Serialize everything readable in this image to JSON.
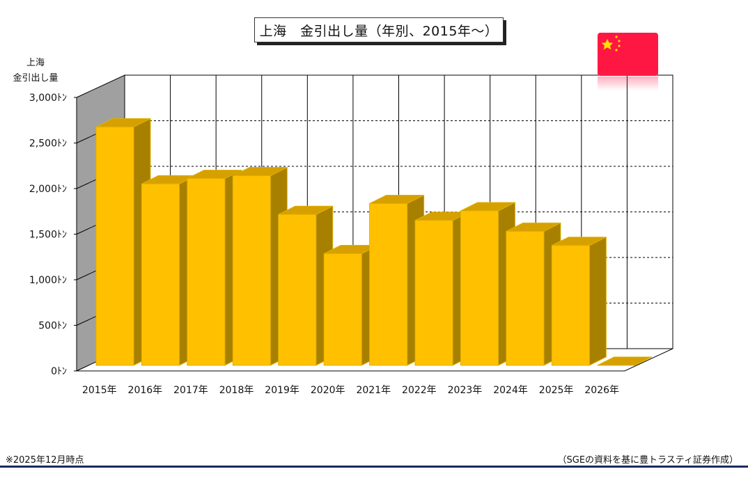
{
  "chart_data": {
    "type": "bar",
    "title": "上海　金引出し量（年別、2015年～）",
    "ylabel_lines": [
      "上海",
      "金引出し量"
    ],
    "ylim": [
      0,
      3000
    ],
    "yticks": [
      {
        "value": 0,
        "label": "0ﾄﾝ"
      },
      {
        "value": 500,
        "label": "500ﾄﾝ"
      },
      {
        "value": 1000,
        "label": "1,000ﾄﾝ"
      },
      {
        "value": 1500,
        "label": "1,500ﾄﾝ"
      },
      {
        "value": 2000,
        "label": "2,000ﾄﾝ"
      },
      {
        "value": 2500,
        "label": "2,500ﾄﾝ"
      },
      {
        "value": 3000,
        "label": "3,000ﾄﾝ"
      }
    ],
    "categories": [
      "2015年",
      "2016年",
      "2017年",
      "2018年",
      "2019年",
      "2020年",
      "2021年",
      "2022年",
      "2023年",
      "2024年",
      "2025年",
      "2026年"
    ],
    "values": [
      2615,
      1990,
      2050,
      2080,
      1655,
      1225,
      1775,
      1590,
      1695,
      1470,
      1315,
      0
    ],
    "grid": true,
    "colors": {
      "bar_front": "#ffc000",
      "bar_top": "#d6a000",
      "bar_side": "#a88000",
      "wall": "#a0a0a0"
    }
  },
  "flag": {
    "name": "china-flag-icon",
    "color": "#ff1744",
    "star_color": "#ffde00"
  },
  "footer": {
    "note": "※2025年12月時点",
    "source": "（SGEの資料を基に豊トラスティ証券作成）"
  }
}
